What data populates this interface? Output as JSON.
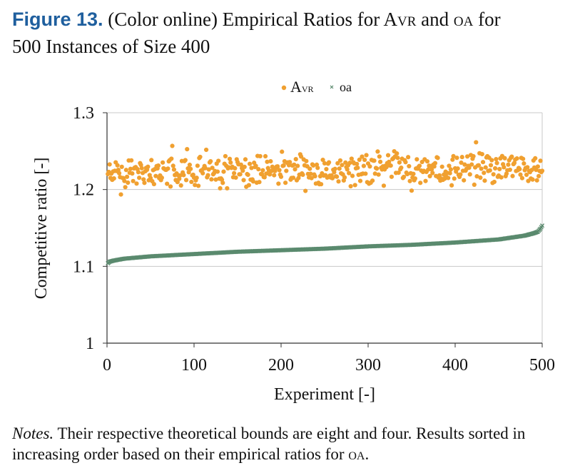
{
  "caption": {
    "figure_label": "Figure 13.",
    "text_1": "(Color online) Empirical Ratios for ",
    "avr_a": "A",
    "avr_rest": "vr",
    "text_2": " and ",
    "oa": "oa",
    "text_3": " for",
    "text_4": "500 Instances of Size 400"
  },
  "notes": {
    "label": "Notes.",
    "text_1": " Their respective theoretical bounds are eight and four. Results sorted in increasing order based on their empirical ratios for ",
    "oa": "oa",
    "text_2": "."
  },
  "chart_data": {
    "type": "scatter",
    "title": "",
    "xlabel": "Experiment [-]",
    "ylabel": "Competitive ratio [-]",
    "xlim": [
      0,
      500
    ],
    "ylim": [
      1,
      1.3
    ],
    "xticks": [
      0,
      100,
      200,
      300,
      400,
      500
    ],
    "yticks": [
      1,
      1.1,
      1.2,
      1.3
    ],
    "ytick_labels": [
      "1",
      "1.1",
      "1.2",
      "1.3"
    ],
    "grid": "horizontal",
    "legend_position": "top-center",
    "series": [
      {
        "name": "AVR",
        "legend_a": "A",
        "legend_rest": "vr",
        "marker": "circle",
        "color": "#f0a030",
        "n": 500,
        "y_min": 1.18,
        "y_max": 1.266,
        "y_center": 1.222,
        "y_spread": 0.011,
        "note": "scattered points, roughly uniform band around 1.22"
      },
      {
        "name": "OA",
        "legend_text": "oa",
        "marker": "x",
        "color": "#5a8a6e",
        "n": 500,
        "sorted": true,
        "profile_x": [
          0,
          1,
          3,
          6,
          10,
          20,
          50,
          100,
          150,
          200,
          250,
          300,
          350,
          400,
          450,
          480,
          490,
          495,
          498,
          500
        ],
        "profile_y": [
          1.101,
          1.104,
          1.106,
          1.107,
          1.108,
          1.11,
          1.113,
          1.116,
          1.119,
          1.121,
          1.123,
          1.126,
          1.128,
          1.131,
          1.135,
          1.14,
          1.143,
          1.145,
          1.149,
          1.153
        ]
      }
    ]
  }
}
